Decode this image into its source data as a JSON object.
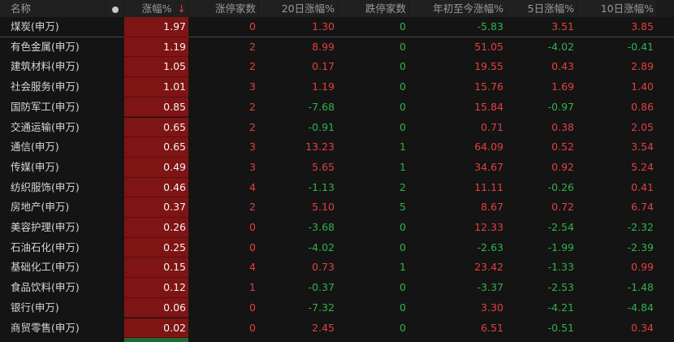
{
  "colors": {
    "up": "#e2403f",
    "down": "#31b24a",
    "highlight": "#7f1414"
  },
  "header": {
    "name": "名称",
    "dot_icon": "circle-dot",
    "chg": "涨幅%",
    "sort_icon": "arrow-down",
    "sort_glyph": "↓",
    "limit_up": "涨停家数",
    "chg20": "20日涨幅%",
    "limit_down": "跌停家数",
    "ytd": "年初至今涨幅%",
    "chg5": "5日涨幅%",
    "chg10": "10日涨幅%"
  },
  "rows": [
    {
      "name": "煤炭(申万)",
      "chg": "1.97",
      "limit_up": "0",
      "chg20": "1.30",
      "limit_down": "0",
      "ytd": "-5.83",
      "chg5": "3.51",
      "chg10": "3.85"
    },
    {
      "name": "有色金属(申万)",
      "chg": "1.19",
      "limit_up": "2",
      "chg20": "8.99",
      "limit_down": "0",
      "ytd": "51.05",
      "chg5": "-4.02",
      "chg10": "-0.41"
    },
    {
      "name": "建筑材料(申万)",
      "chg": "1.05",
      "limit_up": "2",
      "chg20": "0.17",
      "limit_down": "0",
      "ytd": "19.55",
      "chg5": "0.43",
      "chg10": "2.89"
    },
    {
      "name": "社会服务(申万)",
      "chg": "1.01",
      "limit_up": "3",
      "chg20": "1.19",
      "limit_down": "0",
      "ytd": "15.76",
      "chg5": "1.69",
      "chg10": "1.40"
    },
    {
      "name": "国防军工(申万)",
      "chg": "0.85",
      "limit_up": "2",
      "chg20": "-7.68",
      "limit_down": "0",
      "ytd": "15.84",
      "chg5": "-0.97",
      "chg10": "0.86"
    },
    {
      "name": "交通运输(申万)",
      "chg": "0.65",
      "limit_up": "2",
      "chg20": "-0.91",
      "limit_down": "0",
      "ytd": "0.71",
      "chg5": "0.38",
      "chg10": "2.05"
    },
    {
      "name": "通信(申万)",
      "chg": "0.65",
      "limit_up": "3",
      "chg20": "13.23",
      "limit_down": "1",
      "ytd": "64.09",
      "chg5": "0.52",
      "chg10": "3.54"
    },
    {
      "name": "传媒(申万)",
      "chg": "0.49",
      "limit_up": "3",
      "chg20": "5.65",
      "limit_down": "1",
      "ytd": "34.67",
      "chg5": "0.92",
      "chg10": "5.24"
    },
    {
      "name": "纺织服饰(申万)",
      "chg": "0.46",
      "limit_up": "4",
      "chg20": "-1.13",
      "limit_down": "2",
      "ytd": "11.11",
      "chg5": "-0.26",
      "chg10": "0.41"
    },
    {
      "name": "房地产(申万)",
      "chg": "0.37",
      "limit_up": "2",
      "chg20": "5.10",
      "limit_down": "5",
      "ytd": "8.67",
      "chg5": "0.72",
      "chg10": "6.74"
    },
    {
      "name": "美容护理(申万)",
      "chg": "0.26",
      "limit_up": "0",
      "chg20": "-3.68",
      "limit_down": "0",
      "ytd": "12.33",
      "chg5": "-2.54",
      "chg10": "-2.32"
    },
    {
      "name": "石油石化(申万)",
      "chg": "0.25",
      "limit_up": "0",
      "chg20": "-4.02",
      "limit_down": "0",
      "ytd": "-2.63",
      "chg5": "-1.99",
      "chg10": "-2.39"
    },
    {
      "name": "基础化工(申万)",
      "chg": "0.15",
      "limit_up": "4",
      "chg20": "0.73",
      "limit_down": "1",
      "ytd": "23.42",
      "chg5": "-1.33",
      "chg10": "0.99"
    },
    {
      "name": "食品饮料(申万)",
      "chg": "0.12",
      "limit_up": "1",
      "chg20": "-0.37",
      "limit_down": "0",
      "ytd": "-3.37",
      "chg5": "-2.53",
      "chg10": "-1.48"
    },
    {
      "name": "银行(申万)",
      "chg": "0.06",
      "limit_up": "0",
      "chg20": "-7.32",
      "limit_down": "0",
      "ytd": "3.30",
      "chg5": "-4.21",
      "chg10": "-4.84"
    },
    {
      "name": "商贸零售(申万)",
      "chg": "0.02",
      "limit_up": "0",
      "chg20": "2.45",
      "limit_down": "0",
      "ytd": "6.51",
      "chg5": "-0.51",
      "chg10": "0.34"
    }
  ]
}
